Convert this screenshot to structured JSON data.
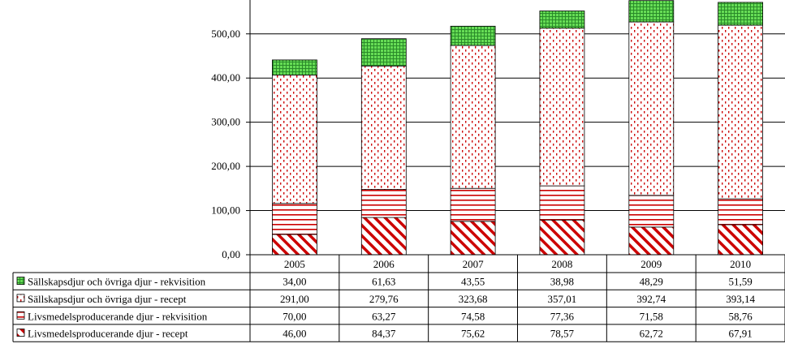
{
  "chart_data": {
    "type": "bar",
    "stacked": true,
    "categories": [
      "2005",
      "2006",
      "2007",
      "2008",
      "2009",
      "2010"
    ],
    "series": [
      {
        "name": "Livsmedelsproducerande djur - recept",
        "values": [
          46.0,
          84.37,
          75.62,
          78.57,
          62.72,
          67.91
        ],
        "value_labels": [
          "46,00",
          "84,37",
          "75,62",
          "78,57",
          "62,72",
          "67,91"
        ],
        "color": "#cc0000",
        "pattern": "diagonal-stripes"
      },
      {
        "name": "Livsmedelsproducerande djur - rekvisition",
        "values": [
          70.0,
          63.27,
          74.58,
          77.36,
          71.58,
          58.76
        ],
        "value_labels": [
          "70,00",
          "63,27",
          "74,58",
          "77,36",
          "71,58",
          "58,76"
        ],
        "color": "#cc0000",
        "pattern": "horizontal-lines"
      },
      {
        "name": "Sällskapsdjur och övriga djur - recept",
        "values": [
          291.0,
          279.76,
          323.68,
          357.01,
          392.74,
          393.14
        ],
        "value_labels": [
          "291,00",
          "279,76",
          "323,68",
          "357,01",
          "392,74",
          "393,14"
        ],
        "color": "#cc0000",
        "pattern": "dots"
      },
      {
        "name": "Sällskapsdjur och övriga djur - rekvisition",
        "values": [
          34.0,
          61.63,
          43.55,
          38.98,
          48.29,
          51.59
        ],
        "value_labels": [
          "34,00",
          "61,63",
          "43,55",
          "38,98",
          "48,29",
          "51,59"
        ],
        "color": "#33cc33",
        "pattern": "grid"
      }
    ],
    "yticks": [
      0,
      100,
      200,
      300,
      400,
      500
    ],
    "ytick_labels": [
      "0,00",
      "100,00",
      "200,00",
      "300,00",
      "400,00",
      "500,00"
    ],
    "ylim": [
      0,
      580
    ],
    "grid": true,
    "legend": "data-table-below"
  }
}
